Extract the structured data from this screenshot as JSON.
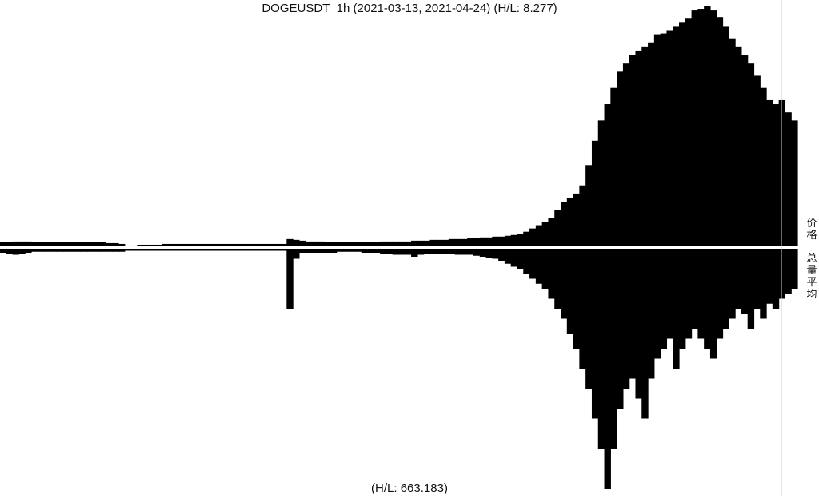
{
  "chart_data": {
    "type": "bar",
    "title": "DOGEUSDT_1h (2021-03-13, 2021-04-24) (H/L: 8.277)",
    "footer": "(H/L: 663.183)",
    "x_range": [
      "2021-03-13",
      "2021-04-24"
    ],
    "colors": {
      "bars": "#000000",
      "background": "#ffffff",
      "separator": "#ffffff",
      "edge_line": "#cccccc"
    },
    "series": [
      {
        "panel": "top",
        "label": "价格",
        "description_scale": "relative",
        "values": [
          5,
          5,
          6,
          6,
          6,
          5,
          5,
          5,
          5,
          5,
          5,
          5,
          5,
          5,
          5,
          5,
          5,
          4,
          4,
          3,
          1,
          1,
          2,
          2,
          2,
          2,
          3,
          3,
          3,
          3,
          3,
          3,
          3,
          3,
          3,
          3,
          3,
          3,
          3,
          3,
          3,
          3,
          3,
          3,
          3,
          3,
          9,
          8,
          7,
          6,
          6,
          6,
          5,
          5,
          5,
          5,
          5,
          5,
          5,
          5,
          5,
          6,
          6,
          6,
          6,
          6,
          7,
          7,
          7,
          8,
          8,
          8,
          9,
          9,
          9,
          10,
          10,
          11,
          11,
          12,
          12,
          13,
          14,
          15,
          18,
          22,
          26,
          30,
          35,
          45,
          55,
          60,
          65,
          75,
          100,
          130,
          155,
          175,
          195,
          215,
          225,
          235,
          240,
          245,
          250,
          260,
          262,
          265,
          270,
          275,
          280,
          290,
          292,
          295,
          290,
          282,
          270,
          255,
          245,
          235,
          225,
          210,
          195,
          180,
          175,
          180,
          165,
          155
        ]
      },
      {
        "panel": "bottom",
        "label": "总量平均",
        "description_scale": "relative",
        "values": [
          4,
          5,
          6,
          5,
          4,
          3,
          3,
          3,
          3,
          3,
          3,
          3,
          3,
          3,
          3,
          3,
          3,
          3,
          3,
          3,
          2,
          2,
          2,
          2,
          2,
          2,
          2,
          2,
          2,
          2,
          2,
          2,
          2,
          2,
          2,
          2,
          2,
          2,
          2,
          2,
          2,
          2,
          2,
          2,
          2,
          2,
          60,
          10,
          4,
          4,
          4,
          4,
          4,
          4,
          3,
          3,
          3,
          3,
          4,
          4,
          4,
          5,
          5,
          6,
          6,
          6,
          8,
          6,
          5,
          5,
          5,
          5,
          5,
          6,
          6,
          6,
          7,
          8,
          9,
          10,
          12,
          15,
          18,
          20,
          25,
          30,
          35,
          40,
          50,
          60,
          70,
          85,
          100,
          120,
          140,
          170,
          200,
          240,
          200,
          160,
          140,
          130,
          150,
          170,
          130,
          110,
          100,
          90,
          120,
          100,
          90,
          80,
          90,
          100,
          110,
          90,
          80,
          70,
          60,
          65,
          80,
          60,
          70,
          55,
          60,
          50,
          45,
          40
        ]
      }
    ]
  }
}
